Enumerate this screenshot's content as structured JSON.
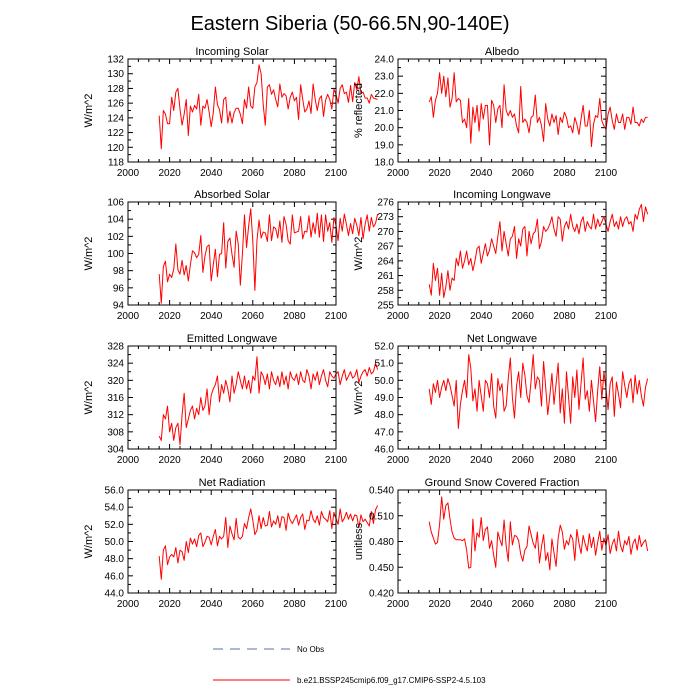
{
  "title": "Eastern Siberia (50-66.5N,90-140E)",
  "legend": {
    "obs_label": "No Obs",
    "obs_color": "#5b6fb8",
    "model_label": "b.e21.BSSP245cmip6.f09_g17.CMIP6-SSP2-4.5.103",
    "model_color": "#ff0000"
  },
  "chart_data": [
    {
      "type": "line",
      "title": "Incoming Solar",
      "ylabel": "W/m^2",
      "xlim": [
        2000,
        2100
      ],
      "ylim": [
        118,
        132
      ],
      "xticks": [
        "2000",
        "2020",
        "2040",
        "2060",
        "2080",
        "2100"
      ],
      "yticks": [
        "118",
        "120",
        "122",
        "124",
        "126",
        "128",
        "130",
        "132"
      ],
      "x_start": 2015,
      "values": [
        124.3,
        119.8,
        125.0,
        124.5,
        123.2,
        123.2,
        126.8,
        125.0,
        127.5,
        128.0,
        125.2,
        123.0,
        124.5,
        126.5,
        121.6,
        125.6,
        124.8,
        125.7,
        125.2,
        127.2,
        123.0,
        125.6,
        125.3,
        126.5,
        124.8,
        122.8,
        124.7,
        128.2,
        125.8,
        125.1,
        123.3,
        126.5,
        126.8,
        123.3,
        124.9,
        123.3,
        124.7,
        125.3,
        125.3,
        124.5,
        123.2,
        126.5,
        125.3,
        128.2,
        125.6,
        125.3,
        128.2,
        128.8,
        131.2,
        130.0,
        125.8,
        123.0,
        128.2,
        128.5,
        127.2,
        127.8,
        126.5,
        125.5,
        128.6,
        126.8,
        127.3,
        127.0,
        125.2,
        126.8,
        127.5,
        126.3,
        126.8,
        123.8,
        128.5,
        126.5,
        124.8,
        125.2,
        126.3,
        124.6,
        128.6,
        126.5,
        125.0,
        126.6,
        127.0,
        124.2,
        126.4,
        127.2,
        126.5,
        125.2,
        127.9,
        127.2,
        126.0,
        128.0,
        128.5,
        127.3,
        127.5,
        126.1,
        128.4,
        126.2,
        128.8,
        127.8,
        129.6,
        127.3,
        127.5,
        126.7,
        126.7,
        126.0,
        127.2,
        126.7,
        126.6,
        126.5
      ]
    },
    {
      "type": "line",
      "title": "Albedo",
      "ylabel": "% reflected",
      "xlim": [
        2000,
        2100
      ],
      "ylim": [
        18.0,
        24.0
      ],
      "xticks": [
        "2000",
        "2020",
        "2040",
        "2060",
        "2080",
        "2100"
      ],
      "yticks": [
        "18.0",
        "19.0",
        "20.0",
        "21.0",
        "22.0",
        "23.0",
        "24.0"
      ],
      "x_start": 2015,
      "values": [
        21.5,
        21.8,
        20.6,
        21.6,
        22.0,
        23.2,
        22.0,
        23.0,
        21.8,
        22.9,
        21.2,
        21.7,
        23.2,
        21.5,
        21.7,
        21.6,
        20.3,
        20.5,
        20.0,
        21.7,
        19.1,
        21.2,
        20.3,
        21.3,
        19.8,
        21.4,
        20.5,
        21.3,
        21.3,
        19.0,
        21.6,
        21.3,
        20.3,
        21.1,
        21.3,
        20.0,
        22.5,
        21.0,
        20.7,
        21.0,
        20.6,
        20.8,
        20.1,
        19.7,
        22.4,
        20.3,
        20.5,
        20.3,
        19.7,
        20.6,
        20.7,
        21.9,
        20.3,
        20.6,
        20.1,
        19.2,
        21.4,
        20.5,
        20.1,
        20.8,
        20.3,
        20.7,
        19.6,
        20.6,
        20.3,
        20.9,
        20.6,
        20.0,
        20.1,
        19.7,
        20.6,
        20.2,
        19.6,
        20.5,
        21.3,
        20.1,
        20.1,
        21.0,
        18.9,
        20.2,
        20.7,
        20.6,
        21.7,
        20.4,
        20.1,
        19.9,
        20.8,
        21.2,
        20.4,
        19.9,
        20.8,
        20.3,
        20.3,
        20.8,
        19.9,
        20.6,
        20.6,
        20.2,
        21.2,
        20.3,
        20.3,
        20.1,
        20.5,
        20.3,
        20.6,
        20.6
      ]
    },
    {
      "type": "line",
      "title": "Absorbed Solar",
      "ylabel": "W/m^2",
      "xlim": [
        2000,
        2100
      ],
      "ylim": [
        94,
        106
      ],
      "xticks": [
        "2000",
        "2020",
        "2040",
        "2060",
        "2080",
        "2100"
      ],
      "yticks": [
        "94",
        "96",
        "98",
        "100",
        "102",
        "104",
        "106"
      ],
      "x_start": 2015,
      "values": [
        97.6,
        94.2,
        98.5,
        99.1,
        96.7,
        97.6,
        97.2,
        98.2,
        101.1,
        98.1,
        97.6,
        99.2,
        97.5,
        98.6,
        96.8,
        98.7,
        100.3,
        100.1,
        99.5,
        99.9,
        102.1,
        97.8,
        99.7,
        100.8,
        101.0,
        96.8,
        98.7,
        100.5,
        97.3,
        99.9,
        100.0,
        103.6,
        98.3,
        101.4,
        101.8,
        99.9,
        98.4,
        102.6,
        101.1,
        96.3,
        99.9,
        104.5,
        100.7,
        103.2,
        105.2,
        101.5,
        95.7,
        101.5,
        103.9,
        101.8,
        102.5,
        102.4,
        101.4,
        104.5,
        101.5,
        103.1,
        102.9,
        101.8,
        103.8,
        101.3,
        104.3,
        103.4,
        101.5,
        101.1,
        104.5,
        102.4,
        102.5,
        102.6,
        104.3,
        101.7,
        102.6,
        102.5,
        104.4,
        101.9,
        103.6,
        102.3,
        104.7,
        101.9,
        104.5,
        101.4,
        104.5,
        102.6,
        103.6,
        101.3,
        104.2,
        103.3,
        101.5,
        104.1,
        102.6,
        104.6,
        103.4,
        102.1,
        103.5,
        102.3,
        104.1,
        103.3,
        102.1,
        104.2,
        101.7,
        103.4,
        104.5,
        102.6,
        104.2,
        103.1,
        103.5,
        104.6
      ]
    },
    {
      "type": "line",
      "title": "Incoming Longwave",
      "ylabel": "W/m^2",
      "xlim": [
        2000,
        2100
      ],
      "ylim": [
        255,
        276
      ],
      "xticks": [
        "2000",
        "2020",
        "2040",
        "2060",
        "2080",
        "2100"
      ],
      "yticks": [
        "255",
        "258",
        "261",
        "264",
        "267",
        "270",
        "273",
        "276"
      ],
      "x_start": 2015,
      "values": [
        259.2,
        257.0,
        263.5,
        260.0,
        262.5,
        257.0,
        261.5,
        256.5,
        258.7,
        262.0,
        258.0,
        260.5,
        260.0,
        264.5,
        263.0,
        266.0,
        262.5,
        264.0,
        266.0,
        263.2,
        264.5,
        262.0,
        264.0,
        266.5,
        267.0,
        263.5,
        265.5,
        267.5,
        265.0,
        266.2,
        268.5,
        267.0,
        265.5,
        269.0,
        272.0,
        266.0,
        270.0,
        267.5,
        265.0,
        268.5,
        269.0,
        271.0,
        264.5,
        268.5,
        267.0,
        270.5,
        271.0,
        265.0,
        270.0,
        267.5,
        269.5,
        270.0,
        272.5,
        266.5,
        268.0,
        271.0,
        270.0,
        270.5,
        271.5,
        273.0,
        270.5,
        269.0,
        273.0,
        272.5,
        268.0,
        271.0,
        272.0,
        270.5,
        273.5,
        271.0,
        270.0,
        271.5,
        269.5,
        272.0,
        273.0,
        270.0,
        272.0,
        271.0,
        270.5,
        273.5,
        270.5,
        272.5,
        271.0,
        272.0,
        273.0,
        271.5,
        270.0,
        272.0,
        273.5,
        271.0,
        272.0,
        270.5,
        273.0,
        271.0,
        272.5,
        273.0,
        271.5,
        272.0,
        270.0,
        273.5,
        272.5,
        274.5,
        275.5,
        272.0,
        275.0,
        273.5
      ]
    },
    {
      "type": "line",
      "title": "Emitted Longwave",
      "ylabel": "W/m^2",
      "xlim": [
        2000,
        2100
      ],
      "ylim": [
        304,
        328
      ],
      "xticks": [
        "2000",
        "2020",
        "2040",
        "2060",
        "2080",
        "2100"
      ],
      "yticks": [
        "304",
        "308",
        "312",
        "316",
        "320",
        "324",
        "328"
      ],
      "x_start": 2015,
      "values": [
        307.0,
        306.0,
        312.0,
        311.0,
        314.0,
        308.0,
        310.0,
        306.0,
        309.0,
        310.0,
        305.0,
        312.0,
        317.0,
        309.0,
        311.0,
        313.0,
        314.0,
        311.0,
        313.5,
        312.0,
        316.0,
        313.0,
        314.0,
        318.0,
        312.0,
        316.5,
        318.0,
        319.0,
        321.0,
        315.0,
        319.0,
        317.0,
        320.0,
        318.0,
        315.0,
        321.0,
        317.0,
        319.0,
        322.0,
        320.0,
        318.0,
        321.0,
        318.0,
        320.0,
        317.0,
        321.0,
        320.0,
        325.5,
        317.0,
        322.0,
        321.0,
        319.0,
        321.5,
        318.0,
        322.0,
        320.0,
        319.0,
        321.0,
        318.5,
        322.0,
        319.0,
        321.0,
        318.0,
        322.0,
        320.5,
        320.0,
        321.5,
        319.0,
        322.0,
        320.0,
        319.5,
        322.5,
        321.0,
        318.0,
        321.5,
        320.0,
        322.0,
        319.0,
        321.0,
        322.5,
        320.0,
        318.5,
        322.0,
        321.0,
        320.5,
        321.5,
        322.0,
        319.0,
        321.0,
        322.5,
        320.0,
        321.0,
        322.0,
        320.5,
        321.0,
        322.5,
        319.5,
        321.0,
        322.0,
        322.5,
        321.0,
        323.0,
        321.5,
        322.0,
        324.0,
        322.5
      ]
    },
    {
      "type": "line",
      "title": "Net Longwave",
      "ylabel": "W/m^2",
      "xlim": [
        2000,
        2100
      ],
      "ylim": [
        46.0,
        52.0
      ],
      "xticks": [
        "2000",
        "2020",
        "2040",
        "2060",
        "2080",
        "2100"
      ],
      "yticks": [
        "46.0",
        "47.0",
        "48.0",
        "49.0",
        "50.0",
        "51.0",
        "52.0"
      ],
      "x_start": 2015,
      "values": [
        49.5,
        48.6,
        49.8,
        49.3,
        50.0,
        49.0,
        49.6,
        50.0,
        49.4,
        50.1,
        49.7,
        49.1,
        48.5,
        50.0,
        47.2,
        48.6,
        49.4,
        50.0,
        49.0,
        51.5,
        50.7,
        48.8,
        49.5,
        48.2,
        50.0,
        49.1,
        48.2,
        50.0,
        49.8,
        49.0,
        50.4,
        48.5,
        47.8,
        50.1,
        49.4,
        49.8,
        48.2,
        48.5,
        50.1,
        51.3,
        49.0,
        47.8,
        49.7,
        50.5,
        49.0,
        51.0,
        50.3,
        49.1,
        48.7,
        50.0,
        51.5,
        49.5,
        50.2,
        50.0,
        48.5,
        51.1,
        49.6,
        48.0,
        49.1,
        50.4,
        48.6,
        49.8,
        51.0,
        48.1,
        49.5,
        47.5,
        50.5,
        49.0,
        47.5,
        50.2,
        49.0,
        50.6,
        48.3,
        49.8,
        51.3,
        48.9,
        49.4,
        48.2,
        50.0,
        48.8,
        47.6,
        49.4,
        50.8,
        48.9,
        50.5,
        49.5,
        48.3,
        49.8,
        50.2,
        47.9,
        49.9,
        49.2,
        48.4,
        50.5,
        49.7,
        49.0,
        49.8,
        50.1,
        48.7,
        50.3,
        49.2,
        50.0,
        49.1,
        48.5,
        49.6,
        50.1
      ]
    },
    {
      "type": "line",
      "title": "Net Radiation",
      "ylabel": "W/m^2",
      "xlim": [
        2000,
        2100
      ],
      "ylim": [
        44.0,
        56.0
      ],
      "xticks": [
        "2000",
        "2020",
        "2040",
        "2060",
        "2080",
        "2100"
      ],
      "yticks": [
        "44.0",
        "46.0",
        "48.0",
        "50.0",
        "52.0",
        "54.0",
        "56.0"
      ],
      "x_start": 2015,
      "values": [
        48.3,
        45.6,
        49.0,
        49.5,
        47.3,
        48.2,
        48.5,
        48.2,
        49.3,
        47.5,
        49.0,
        48.8,
        47.8,
        50.0,
        48.7,
        50.4,
        49.7,
        50.3,
        49.4,
        50.7,
        51.0,
        49.4,
        49.9,
        50.6,
        50.5,
        49.6,
        50.6,
        51.4,
        49.5,
        50.6,
        50.3,
        50.6,
        52.8,
        49.3,
        51.8,
        50.9,
        50.2,
        52.7,
        50.5,
        50.3,
        50.6,
        52.1,
        51.5,
        52.8,
        53.8,
        52.5,
        50.8,
        51.3,
        53.0,
        51.5,
        52.8,
        51.8,
        51.9,
        53.5,
        51.7,
        52.4,
        52.0,
        53.0,
        51.6,
        52.9,
        52.8,
        51.3,
        53.3,
        52.5,
        52.1,
        52.6,
        53.1,
        51.9,
        52.8,
        53.2,
        51.4,
        52.5,
        52.4,
        53.6,
        52.6,
        52.2,
        53.0,
        51.9,
        53.5,
        52.8,
        52.6,
        52.3,
        53.6,
        51.5,
        53.4,
        52.7,
        52.0,
        53.8,
        52.3,
        52.7,
        53.4,
        52.6,
        53.2,
        52.4,
        53.1,
        53.0,
        51.6,
        53.1,
        52.3,
        52.6,
        52.2,
        51.8,
        53.5,
        52.1,
        53.7,
        54.2
      ]
    },
    {
      "type": "line",
      "title": "Ground Snow Covered Fraction",
      "ylabel": "unitless",
      "xlim": [
        2000,
        2100
      ],
      "ylim": [
        0.42,
        0.54
      ],
      "xticks": [
        "2000",
        "2020",
        "2040",
        "2060",
        "2080",
        "2100"
      ],
      "yticks": [
        "0.420",
        "0.450",
        "0.480",
        "0.510",
        "0.540"
      ],
      "x_start": 2015,
      "values": [
        0.503,
        0.491,
        0.484,
        0.477,
        0.479,
        0.5,
        0.532,
        0.506,
        0.522,
        0.525,
        0.506,
        0.491,
        0.484,
        0.482,
        0.482,
        0.482,
        0.481,
        0.483,
        0.47,
        0.449,
        0.45,
        0.506,
        0.469,
        0.49,
        0.485,
        0.508,
        0.481,
        0.494,
        0.497,
        0.472,
        0.481,
        0.464,
        0.45,
        0.491,
        0.482,
        0.475,
        0.505,
        0.475,
        0.457,
        0.503,
        0.476,
        0.487,
        0.486,
        0.481,
        0.465,
        0.457,
        0.47,
        0.474,
        0.498,
        0.488,
        0.478,
        0.472,
        0.491,
        0.455,
        0.474,
        0.488,
        0.458,
        0.467,
        0.447,
        0.483,
        0.467,
        0.451,
        0.484,
        0.499,
        0.491,
        0.471,
        0.481,
        0.476,
        0.488,
        0.483,
        0.458,
        0.494,
        0.478,
        0.466,
        0.487,
        0.477,
        0.469,
        0.489,
        0.473,
        0.485,
        0.464,
        0.479,
        0.492,
        0.47,
        0.484,
        0.475,
        0.488,
        0.466,
        0.477,
        0.483,
        0.469,
        0.492,
        0.475,
        0.468,
        0.481,
        0.476,
        0.486,
        0.465,
        0.478,
        0.483,
        0.47,
        0.487,
        0.474,
        0.479,
        0.482,
        0.469
      ]
    }
  ]
}
